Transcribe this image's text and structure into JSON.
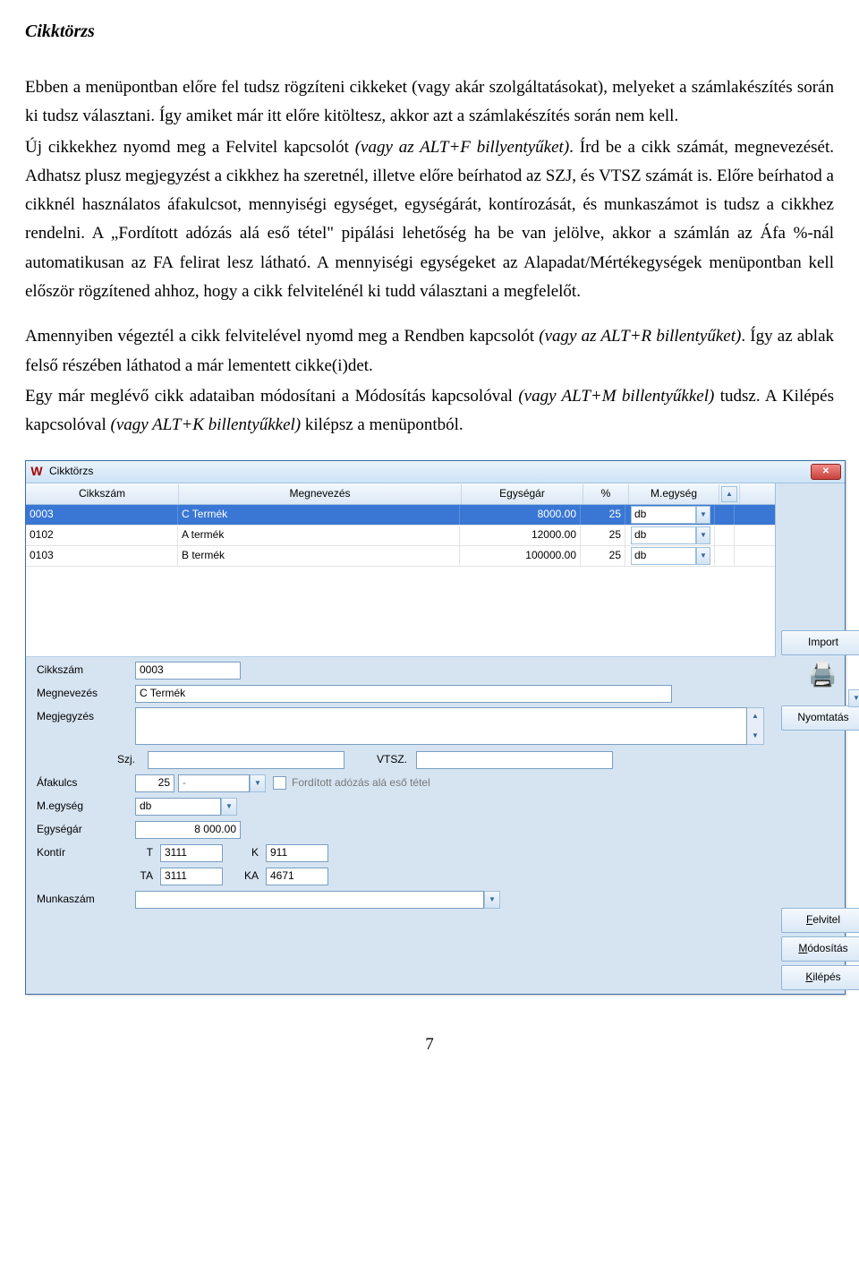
{
  "doc": {
    "title": "Cikktörzs",
    "p1": "Ebben a menüpontban előre fel tudsz rögzíteni cikkeket (vagy akár szolgáltatásokat), melyeket a számlakészítés során ki tudsz választani. Így amiket már itt előre kitöltesz, akkor azt a számlakészítés során nem kell.",
    "p2a": "Új cikkekhez nyomd meg a Felvitel kapcsolót ",
    "p2i": "(vagy az ALT+F billyentyűket)",
    "p2b": ". Írd be a cikk számát, megnevezését. Adhatsz plusz megjegyzést a cikkhez ha szeretnél, illetve előre beírhatod az SZJ, és VTSZ számát is. Előre beírhatod a cikknél használatos áfakulcsot, mennyiségi egységet, egységárát, kontírozását, és munkaszámot is tudsz a cikkhez rendelni. A „Fordított adózás alá eső tétel\" pipálási lehetőség ha be van jelölve, akkor a számlán az Áfa %-nál automatikusan az FA felirat lesz látható. A mennyiségi egységeket az Alapadat/Mértékegységek menüpontban kell először rögzítened ahhoz, hogy a cikk felvitelénél ki tudd választani a megfelelőt.",
    "p3a": "Amennyiben végeztél a cikk felvitelével nyomd meg a Rendben kapcsolót ",
    "p3i": "(vagy az ALT+R billentyűket)",
    "p3b": ". Így az ablak felső részében láthatod a már lementett cikke(i)det.",
    "p4a": "Egy már meglévő cikk adataiban módosítani a Módosítás kapcsolóval ",
    "p4i": "(vagy ALT+M billentyűkkel)",
    "p4b": " tudsz. A Kilépés kapcsolóval ",
    "p4i2": "(vagy ALT+K billentyűkkel)",
    "p4c": " kilépsz a menüpontból.",
    "page_number": "7"
  },
  "win": {
    "title": "Cikktörzs",
    "columns": {
      "cikkszam": "Cikkszám",
      "megnev": "Megnevezés",
      "egysegar": "Egységár",
      "pct": "%",
      "megyseg": "M.egység"
    },
    "rows": [
      {
        "cikkszam": "0003",
        "megnev": "C Termék",
        "egysegar": "8000.00",
        "pct": "25",
        "megyseg": "db",
        "selected": true
      },
      {
        "cikkszam": "0102",
        "megnev": "A termék",
        "egysegar": "12000.00",
        "pct": "25",
        "megyseg": "db",
        "selected": false
      },
      {
        "cikkszam": "0103",
        "megnev": "B termék",
        "egysegar": "100000.00",
        "pct": "25",
        "megyseg": "db",
        "selected": false
      }
    ],
    "buttons": {
      "import": "Import",
      "print": "Nyomtatás",
      "felvitel": "Felvitel",
      "modositas": "Módosítás",
      "kilepes": "Kilépés"
    },
    "form": {
      "labels": {
        "cikkszam": "Cikkszám",
        "megnevezes": "Megnevezés",
        "megjegyzes": "Megjegyzés",
        "szj": "Szj.",
        "vtsz": "VTSZ.",
        "afakulcs": "Áfakulcs",
        "megyseg": "M.egység",
        "egysegar": "Egységár",
        "kontir": "Kontír",
        "munkaszam": "Munkaszám",
        "t": "T",
        "k": "K",
        "ta": "TA",
        "ka": "KA",
        "forditott": "Fordított adózás alá eső tétel"
      },
      "values": {
        "cikkszam": "0003",
        "megnevezes": "C Termék",
        "afakulcs": "25",
        "afadash": "-",
        "megyseg": "db",
        "egysegar": "8 000.00",
        "t": "3111",
        "k": "911",
        "ta": "3111",
        "ka": "4671"
      }
    }
  }
}
